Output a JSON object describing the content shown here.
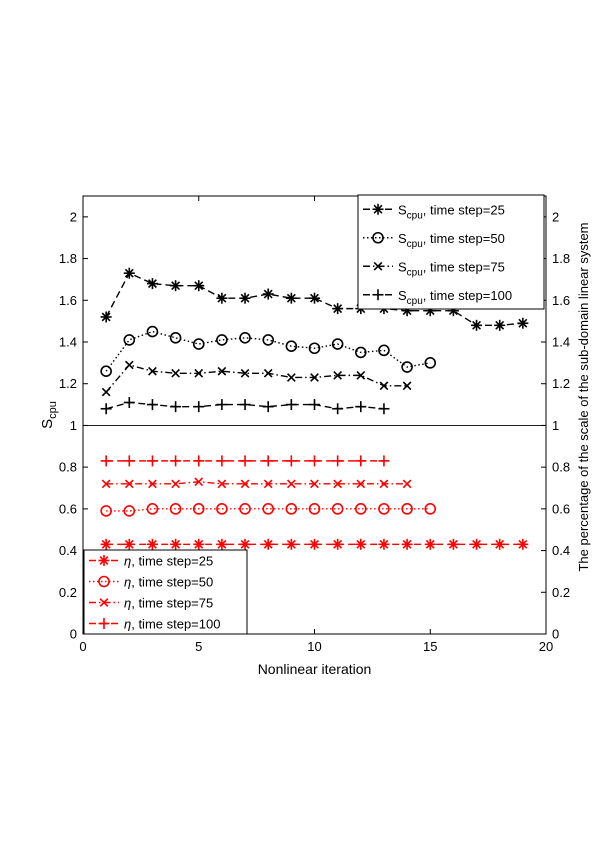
{
  "chart_data": {
    "type": "line",
    "xlabel": "Nonlinear iteration",
    "ylabel_left": "S",
    "ylabel_left_sub": "cpu",
    "ylabel_right": "The percentage of the scale of the sub-domain linear system",
    "xlim": [
      0,
      20
    ],
    "ylim": [
      0,
      2.1
    ],
    "x_ticks": [
      "0",
      "5",
      "10",
      "15",
      "20"
    ],
    "y_ticks": [
      "0",
      "0.2",
      "0.4",
      "0.6",
      "0.8",
      "1",
      "1.2",
      "1.4",
      "1.6",
      "1.8",
      "2"
    ],
    "grid": false,
    "series": [
      {
        "name": "S_cpu, time step=25",
        "legend_main": "S",
        "legend_sub": "cpu",
        "legend_rest": ", time step=25",
        "color": "#000000",
        "dash": "7,4",
        "marker": "asterisk",
        "x": [
          1,
          2,
          3,
          4,
          5,
          6,
          7,
          8,
          9,
          10,
          11,
          12,
          13,
          14,
          15,
          16,
          17,
          18,
          19
        ],
        "y": [
          1.52,
          1.73,
          1.68,
          1.67,
          1.67,
          1.61,
          1.61,
          1.63,
          1.61,
          1.61,
          1.56,
          1.56,
          1.56,
          1.55,
          1.55,
          1.55,
          1.48,
          1.48,
          1.49
        ]
      },
      {
        "name": "S_cpu, time step=50",
        "legend_main": "S",
        "legend_sub": "cpu",
        "legend_rest": ", time step=50",
        "color": "#000000",
        "dash": "1.5,2.5",
        "marker": "circle",
        "x": [
          1,
          2,
          3,
          4,
          5,
          6,
          7,
          8,
          9,
          10,
          11,
          12,
          13,
          14,
          15
        ],
        "y": [
          1.26,
          1.41,
          1.45,
          1.42,
          1.39,
          1.41,
          1.42,
          1.41,
          1.38,
          1.37,
          1.39,
          1.35,
          1.36,
          1.28,
          1.3
        ]
      },
      {
        "name": "S_cpu, time step=75",
        "legend_main": "S",
        "legend_sub": "cpu",
        "legend_rest": ", time step=75",
        "color": "#000000",
        "dash": "7,3,1.5,3",
        "marker": "x",
        "x": [
          1,
          2,
          3,
          4,
          5,
          6,
          7,
          8,
          9,
          10,
          11,
          12,
          13,
          14
        ],
        "y": [
          1.16,
          1.29,
          1.26,
          1.25,
          1.25,
          1.26,
          1.25,
          1.25,
          1.23,
          1.23,
          1.24,
          1.24,
          1.19,
          1.19
        ]
      },
      {
        "name": "S_cpu, time step=100",
        "legend_main": "S",
        "legend_sub": "cpu",
        "legend_rest": ", time step=100",
        "color": "#000000",
        "dash": "7,4",
        "marker": "plus",
        "x": [
          1,
          2,
          3,
          4,
          5,
          6,
          7,
          8,
          9,
          10,
          11,
          12,
          13
        ],
        "y": [
          1.08,
          1.11,
          1.1,
          1.09,
          1.09,
          1.1,
          1.1,
          1.09,
          1.1,
          1.1,
          1.08,
          1.09,
          1.08
        ]
      },
      {
        "name": "η, time step=25",
        "legend_main": "η",
        "legend_sub": "",
        "legend_rest": ", time step=25",
        "color": "#ff0000",
        "dash": "7,4",
        "marker": "asterisk",
        "x": [
          1,
          2,
          3,
          4,
          5,
          6,
          7,
          8,
          9,
          10,
          11,
          12,
          13,
          14,
          15,
          16,
          17,
          18,
          19
        ],
        "y": [
          0.43,
          0.43,
          0.43,
          0.43,
          0.43,
          0.43,
          0.43,
          0.43,
          0.43,
          0.43,
          0.43,
          0.43,
          0.43,
          0.43,
          0.43,
          0.43,
          0.43,
          0.43,
          0.43
        ]
      },
      {
        "name": "η, time step=50",
        "legend_main": "η",
        "legend_sub": "",
        "legend_rest": ", time step=50",
        "color": "#ff0000",
        "dash": "1.5,2.5",
        "marker": "circle",
        "x": [
          1,
          2,
          3,
          4,
          5,
          6,
          7,
          8,
          9,
          10,
          11,
          12,
          13,
          14,
          15
        ],
        "y": [
          0.59,
          0.59,
          0.6,
          0.6,
          0.6,
          0.6,
          0.6,
          0.6,
          0.6,
          0.6,
          0.6,
          0.6,
          0.6,
          0.6,
          0.6
        ]
      },
      {
        "name": "η, time step=75",
        "legend_main": "η",
        "legend_sub": "",
        "legend_rest": ", time step=75",
        "color": "#ff0000",
        "dash": "7,3,1.5,3",
        "marker": "x",
        "x": [
          1,
          2,
          3,
          4,
          5,
          6,
          7,
          8,
          9,
          10,
          11,
          12,
          13,
          14
        ],
        "y": [
          0.72,
          0.72,
          0.72,
          0.72,
          0.73,
          0.72,
          0.72,
          0.72,
          0.72,
          0.72,
          0.72,
          0.72,
          0.72,
          0.72
        ]
      },
      {
        "name": "η, time step=100",
        "legend_main": "η",
        "legend_sub": "",
        "legend_rest": ", time step=100",
        "color": "#ff0000",
        "dash": "7,4",
        "marker": "plus",
        "x": [
          1,
          2,
          3,
          4,
          5,
          6,
          7,
          8,
          9,
          10,
          11,
          12,
          13
        ],
        "y": [
          0.83,
          0.83,
          0.83,
          0.83,
          0.83,
          0.83,
          0.83,
          0.83,
          0.83,
          0.83,
          0.83,
          0.83,
          0.83
        ]
      }
    ],
    "legends": [
      {
        "placement": "top-right",
        "series": [
          0,
          1,
          2,
          3
        ]
      },
      {
        "placement": "bottom-left",
        "series": [
          4,
          5,
          6,
          7
        ]
      }
    ]
  }
}
